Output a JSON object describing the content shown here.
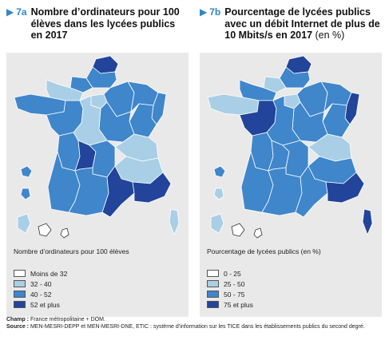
{
  "palette": {
    "lightest": "#ffffff",
    "light": "#a9cfe6",
    "medium": "#3f86cb",
    "dark": "#22449a",
    "accent": "#2f86c6",
    "panel_bg": "#e9e9e9",
    "border": "#ffffff"
  },
  "map_a": {
    "number": "7a",
    "title": "Nombre d’ordinateurs pour 100 élèves dans les lycées publics en 2017",
    "unit": "",
    "legend_title": "Nombre d’ordinateurs pour 100 élèves",
    "legend": [
      {
        "label": "Moins de 32",
        "class": "lightest"
      },
      {
        "label": "32 - 40",
        "class": "light"
      },
      {
        "label": "40 - 52",
        "class": "medium"
      },
      {
        "label": "52 et plus",
        "class": "dark"
      }
    ],
    "regions": {
      "nord": "dark",
      "picardie": "medium",
      "haute-normandie": "medium",
      "basse-normandie": "light",
      "bretagne": "medium",
      "pays-de-la-loire": "medium",
      "centre": "light",
      "ile-de-france": "light",
      "champagne": "medium",
      "lorraine": "medium",
      "alsace": "medium",
      "franche-comte": "medium",
      "bourgogne": "medium",
      "poitou-charentes": "medium",
      "limousin": "dark",
      "auvergne": "medium",
      "rhone-alpes-nord": "light",
      "rhone-alpes-sud": "light",
      "aquitaine": "medium",
      "midi-pyrenees": "medium",
      "languedoc": "dark",
      "provence": "dark",
      "corse": "light",
      "guadeloupe": "medium",
      "martinique": "medium",
      "guyane": "light",
      "reunion": "lightest",
      "mayotte": "lightest"
    }
  },
  "map_b": {
    "number": "7b",
    "title": "Pourcentage de lycées publics avec un débit Internet de plus de 10 Mbits/s en 2017",
    "unit": "(en %)",
    "legend_title": "Pourcentage de lycées publics (en %)",
    "legend": [
      {
        "label": "0 - 25",
        "class": "lightest"
      },
      {
        "label": "25 - 50",
        "class": "light"
      },
      {
        "label": "50 - 75",
        "class": "medium"
      },
      {
        "label": "75 et plus",
        "class": "dark"
      }
    ],
    "regions": {
      "nord": "dark",
      "picardie": "medium",
      "haute-normandie": "light",
      "basse-normandie": "medium",
      "bretagne": "light",
      "pays-de-la-loire": "dark",
      "centre": "medium",
      "ile-de-france": "light",
      "champagne": "medium",
      "lorraine": "medium",
      "alsace": "dark",
      "franche-comte": "medium",
      "bourgogne": "medium",
      "poitou-charentes": "medium",
      "limousin": "medium",
      "auvergne": "medium",
      "rhone-alpes-nord": "light",
      "rhone-alpes-sud": "medium",
      "aquitaine": "medium",
      "midi-pyrenees": "medium",
      "languedoc": "medium",
      "provence": "dark",
      "corse": "dark",
      "guadeloupe": "medium",
      "martinique": "light",
      "guyane": "light",
      "reunion": "lightest",
      "mayotte": "lightest"
    }
  },
  "footnote": {
    "champ_label": "Champ :",
    "champ_text": "France métropolitaine + DOM.",
    "source_label": "Source :",
    "source_text": "MEN-MESRI-DEPP et MEN-MESRI-DNE, ETIC : système d’information sur les TICE dans les établissements publics du second degré."
  }
}
